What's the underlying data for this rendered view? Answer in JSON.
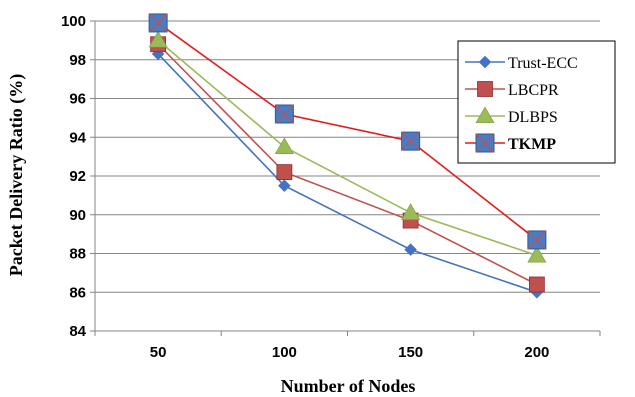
{
  "chart_data": {
    "type": "line",
    "categories": [
      "50",
      "100",
      "150",
      "200"
    ],
    "series": [
      {
        "name": "Trust-ECC",
        "values": [
          98.3,
          91.5,
          88.2,
          86.0
        ],
        "color": "#4472C4",
        "marker": "diamond",
        "bold": false
      },
      {
        "name": "LBCPR",
        "values": [
          98.8,
          92.2,
          89.7,
          86.4
        ],
        "color": "#C0504D",
        "marker": "square",
        "bold": false
      },
      {
        "name": "DLBPS",
        "values": [
          99.0,
          93.5,
          90.1,
          87.9
        ],
        "color": "#9BBB59",
        "marker": "triangle",
        "bold": false
      },
      {
        "name": "TKMP",
        "values": [
          99.9,
          95.2,
          93.8,
          88.7
        ],
        "color": "#E31A1C",
        "marker": "big-square",
        "bold": true
      }
    ],
    "xlabel": "Number of Nodes",
    "ylabel": "Packet Delivery Ratio (%)",
    "ylim": [
      84,
      100
    ],
    "yticks": [
      84,
      86,
      88,
      90,
      92,
      94,
      96,
      98,
      100
    ],
    "grid": true,
    "legend_position": "top-right"
  }
}
